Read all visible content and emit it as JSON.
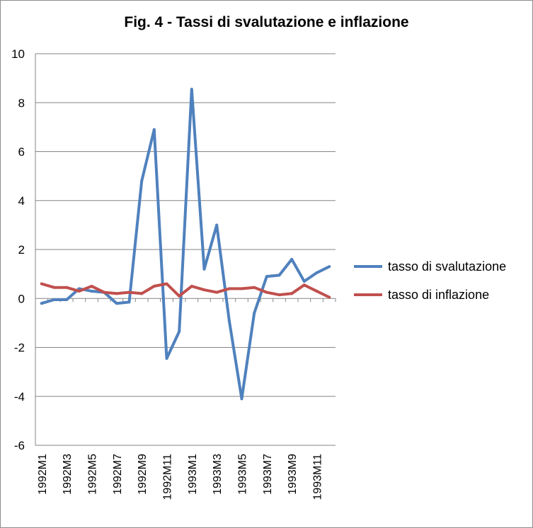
{
  "chart_data": {
    "type": "line",
    "title": "Fig. 4 - Tassi di svalutazione e inflazione",
    "xlabel": "",
    "ylabel": "",
    "ylim": [
      -6,
      10
    ],
    "yticks": [
      10,
      8,
      6,
      4,
      2,
      0,
      -2,
      -4,
      -6
    ],
    "grid": "horizontal",
    "legend_position": "right",
    "x_tick_labels": [
      "1992M1",
      "1992M3",
      "1992M5",
      "1992M7",
      "1992M9",
      "1992M11",
      "1993M1",
      "1993M3",
      "1993M5",
      "1993M7",
      "1993M9",
      "1993M11"
    ],
    "x": [
      "1992M1",
      "1992M2",
      "1992M3",
      "1992M4",
      "1992M5",
      "1992M6",
      "1992M7",
      "1992M8",
      "1992M9",
      "1992M10",
      "1992M11",
      "1992M12",
      "1993M1",
      "1993M2",
      "1993M3",
      "1993M4",
      "1993M5",
      "1993M6",
      "1993M7",
      "1993M8",
      "1993M9",
      "1993M10",
      "1993M11",
      "1993M12"
    ],
    "series": [
      {
        "name": "tasso di svalutazione",
        "color": "#4f81bd",
        "values": [
          -0.2,
          -0.05,
          -0.05,
          0.4,
          0.3,
          0.25,
          -0.2,
          -0.15,
          4.8,
          6.9,
          -2.45,
          -1.35,
          8.55,
          1.2,
          3.0,
          -0.9,
          -4.1,
          -0.6,
          0.9,
          0.95,
          1.6,
          0.7,
          1.05,
          1.3
        ]
      },
      {
        "name": "tasso di inflazione",
        "color": "#c0504d",
        "values": [
          0.6,
          0.45,
          0.45,
          0.3,
          0.5,
          0.25,
          0.2,
          0.25,
          0.2,
          0.5,
          0.6,
          0.1,
          0.5,
          0.35,
          0.25,
          0.4,
          0.4,
          0.45,
          0.25,
          0.15,
          0.2,
          0.55,
          0.3,
          0.05
        ]
      }
    ]
  }
}
